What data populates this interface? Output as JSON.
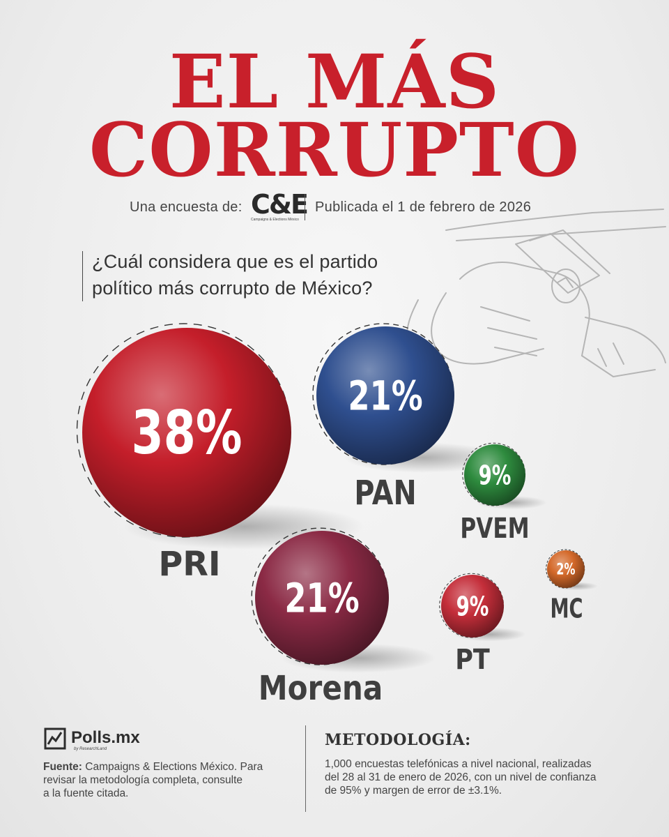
{
  "title": {
    "line1": "EL MÁS",
    "line2": "CORRUPTO"
  },
  "subline": {
    "survey_by": "Una encuesta de:",
    "logo_mark": "C&E",
    "logo_caption": "Campaigns & Elections México",
    "published": "Publicada el 1 de febrero de 2026"
  },
  "question": {
    "line1": "¿Cuál considera que es el partido",
    "line2": "político más corrupto de México?"
  },
  "chart_data": {
    "type": "bubble",
    "value_unit": "%",
    "series": [
      {
        "name": "PRI",
        "value": 38,
        "label": "38%",
        "color": "#c41e2a"
      },
      {
        "name": "PAN",
        "value": 21,
        "label": "21%",
        "color": "#2f4f8f"
      },
      {
        "name": "PVEM",
        "value": 9,
        "label": "9%",
        "color": "#2e8b3e"
      },
      {
        "name": "Morena",
        "value": 21,
        "label": "21%",
        "color": "#8b2a45"
      },
      {
        "name": "PT",
        "value": 9,
        "label": "9%",
        "color": "#c42e3a"
      },
      {
        "name": "MC",
        "value": 2,
        "label": "2%",
        "color": "#d4692a"
      }
    ]
  },
  "footer": {
    "brand": "Polls.mx",
    "brand_sub": "by ResearchLand",
    "source_label": "Fuente:",
    "source_lines": [
      "Campaigns & Elections México. Para",
      "revisar la metodología completa, consulte",
      "a la fuente citada."
    ],
    "methodology_title": "METODOLOGÍA:",
    "methodology_lines": [
      "1,000 encuestas telefónicas a nivel nacional, realizadas",
      "del 28 al 31 de enero de 2026, con un nivel de confianza",
      "de 95% y margen de error de ±3.1%."
    ]
  }
}
